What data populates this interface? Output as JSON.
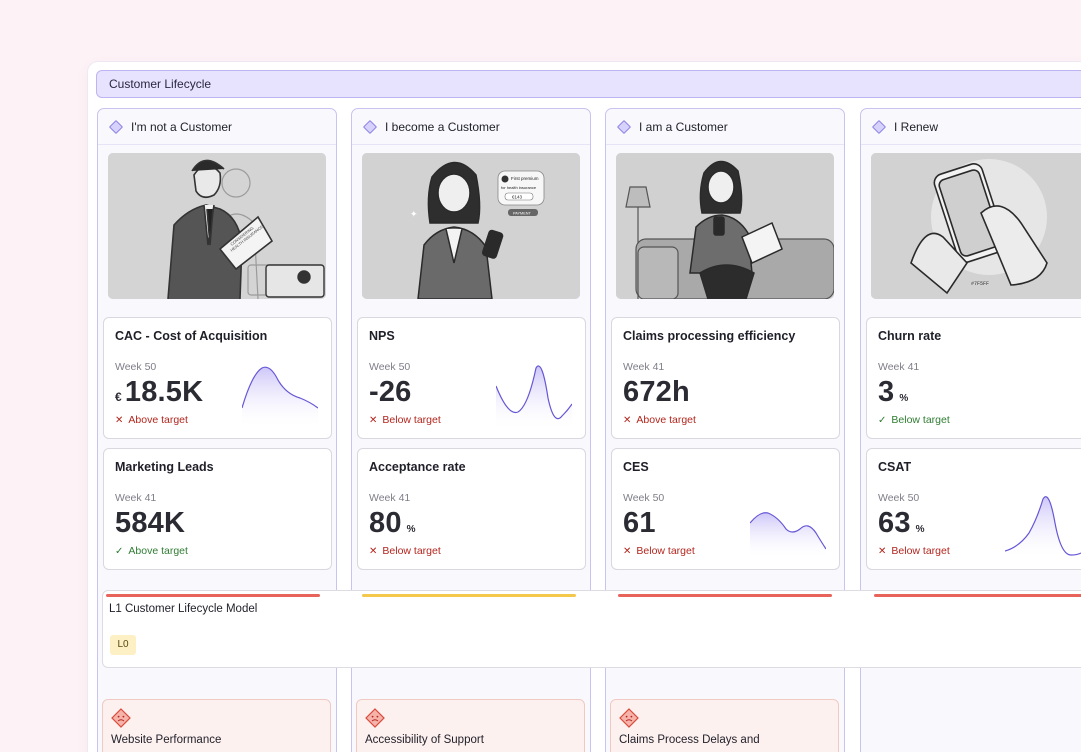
{
  "board": {
    "lifecycle_title": "Customer Lifecycle",
    "columns": [
      {
        "title": "I'm not a Customer",
        "kpis": [
          {
            "title": "CAC - Cost of Acquisition",
            "week": "Week 50",
            "prefix": "€",
            "value": "18.5K",
            "suffix": "",
            "status": "Above target",
            "status_kind": "bad",
            "spark": "hump"
          },
          {
            "title": "Marketing Leads",
            "week": "Week 41",
            "prefix": "",
            "value": "584K",
            "suffix": "",
            "status": "Above target",
            "status_kind": "good",
            "spark": "none"
          }
        ]
      },
      {
        "title": "I become a Customer",
        "kpis": [
          {
            "title": "NPS",
            "week": "Week 50",
            "prefix": "",
            "value": "-26",
            "suffix": "",
            "status": "Below target",
            "status_kind": "bad",
            "spark": "peak"
          },
          {
            "title": "Acceptance rate",
            "week": "Week 41",
            "prefix": "",
            "value": "80",
            "suffix": "%",
            "status": "Below target",
            "status_kind": "bad",
            "spark": "none"
          }
        ]
      },
      {
        "title": "I am a Customer",
        "kpis": [
          {
            "title": "Claims processing efficiency",
            "week": "Week 41",
            "prefix": "",
            "value": "672h",
            "suffix": "",
            "status": "Above target",
            "status_kind": "bad",
            "spark": "none"
          },
          {
            "title": "CES",
            "week": "Week 50",
            "prefix": "",
            "value": "61",
            "suffix": "",
            "status": "Below target",
            "status_kind": "bad",
            "spark": "wave"
          }
        ]
      },
      {
        "title": "I Renew",
        "kpis": [
          {
            "title": "Churn rate",
            "week": "Week 41",
            "prefix": "",
            "value": "3",
            "suffix": "%",
            "status": "Below target",
            "status_kind": "good",
            "spark": "none"
          },
          {
            "title": "CSAT",
            "week": "Week 50",
            "prefix": "",
            "value": "63",
            "suffix": "%",
            "status": "Below target",
            "status_kind": "bad",
            "spark": "peak"
          }
        ]
      }
    ],
    "model": {
      "title": "L1 Customer Lifecycle Model",
      "badge": "L0",
      "stage_colors": [
        "#e8645a",
        "#f3c84b",
        "#e8645a",
        "#e8645a"
      ]
    },
    "pain_points": [
      {
        "title": "Website Performance"
      },
      {
        "title": "Accessibility of Support"
      },
      {
        "title": "Claims Process Delays and"
      }
    ],
    "illustration_text": {
      "doc_label_1": "CONSIDERING",
      "doc_label_2": "HEALTH INSURANCE",
      "phone_line_1": "First premium",
      "phone_line_2": "for health insurance",
      "phone_amount": "€143",
      "phone_button": "PAYMENT",
      "hex_code": "#7F5FF"
    },
    "colors": {
      "accent": "#7b6fe0",
      "bad": "#b3261e",
      "good": "#2f7d32",
      "background": "#fdf2f6"
    }
  }
}
